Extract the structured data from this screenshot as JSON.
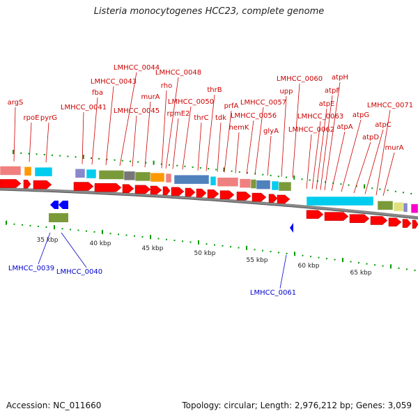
{
  "title": "Listeria monocytogenes HCC23, complete genome",
  "footer": {
    "accession": "Accession: NC_011660",
    "summary": "Topology: circular; Length: 2,976,212 bp; Genes: 3,059"
  },
  "scale_labels": [
    "35 kbp",
    "40 kbp",
    "45 kbp",
    "50 kbp",
    "55 kbp",
    "60 kbp",
    "65 kbp"
  ],
  "top_labels": [
    {
      "name": "argS",
      "color": "#cc0000"
    },
    {
      "name": "rpoE",
      "color": "#cc0000"
    },
    {
      "name": "pyrG",
      "color": "#cc0000"
    },
    {
      "name": "LMHCC_0041",
      "color": "#cc0000"
    },
    {
      "name": "fba",
      "color": "#cc0000"
    },
    {
      "name": "LMHCC_0043",
      "color": "#cc0000"
    },
    {
      "name": "LMHCC_0044",
      "color": "#cc0000"
    },
    {
      "name": "LMHCC_0045",
      "color": "#cc0000"
    },
    {
      "name": "murA",
      "color": "#cc0000"
    },
    {
      "name": "rho",
      "color": "#cc0000"
    },
    {
      "name": "LMHCC_0048",
      "color": "#cc0000"
    },
    {
      "name": "rpmE2",
      "color": "#cc0000"
    },
    {
      "name": "LMHCC_0050",
      "color": "#cc0000"
    },
    {
      "name": "thrC",
      "color": "#cc0000"
    },
    {
      "name": "thrB",
      "color": "#cc0000"
    },
    {
      "name": "tdk",
      "color": "#cc0000"
    },
    {
      "name": "prfA",
      "color": "#cc0000"
    },
    {
      "name": "hemK",
      "color": "#cc0000"
    },
    {
      "name": "LMHCC_0056",
      "color": "#cc0000"
    },
    {
      "name": "LMHCC_0057",
      "color": "#cc0000"
    },
    {
      "name": "glyA",
      "color": "#cc0000"
    },
    {
      "name": "upp",
      "color": "#cc0000"
    },
    {
      "name": "LMHCC_0060",
      "color": "#cc0000"
    },
    {
      "name": "LMHCC_0062",
      "color": "#cc0000"
    },
    {
      "name": "LMHCC_0063",
      "color": "#cc0000"
    },
    {
      "name": "atpE",
      "color": "#cc0000"
    },
    {
      "name": "atpF",
      "color": "#cc0000"
    },
    {
      "name": "atpH",
      "color": "#cc0000"
    },
    {
      "name": "atpA",
      "color": "#cc0000"
    },
    {
      "name": "atpG",
      "color": "#cc0000"
    },
    {
      "name": "atpD",
      "color": "#cc0000"
    },
    {
      "name": "atpC",
      "color": "#cc0000"
    },
    {
      "name": "LMHCC_0071",
      "color": "#cc0000"
    },
    {
      "name": "murA",
      "color": "#cc0000"
    }
  ],
  "bottom_labels": [
    {
      "name": "LMHCC_0039",
      "color": "#0000cc"
    },
    {
      "name": "LMHCC_0040",
      "color": "#0000cc"
    },
    {
      "name": "LMHCC_0061",
      "color": "#0000cc"
    }
  ],
  "colors": {
    "forward_gene": "#ff0000",
    "reverse_gene": "#0000ff",
    "backbone": "#888888",
    "tick": "#009900",
    "cog_pink": "#f08080",
    "cog_orange": "#ff9900",
    "cog_cyan": "#00ccee",
    "cog_olive": "#7a9a3a",
    "cog_steel": "#4f81bd",
    "cog_gray": "#777777",
    "cog_purple": "#8888cc",
    "cog_yellow": "#e0e080",
    "cog_magenta": "#ff00cc"
  }
}
